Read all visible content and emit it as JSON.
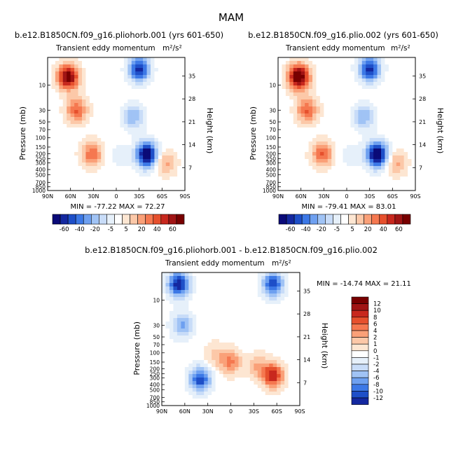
{
  "figure_title": "MAM",
  "panels": [
    {
      "id": "left",
      "case_title": "b.e12.B1850CN.f09_g16.pliohorb.001 (yrs 601-650)",
      "left_label": "Transient eddy momentum",
      "units": "m²/s²",
      "stats": "MIN = -77.22   MAX = 72.27"
    },
    {
      "id": "right",
      "case_title": "b.e12.B1850CN.f09_g16.plio.002 (yrs 601-650)",
      "left_label": "Transient eddy momentum",
      "units": "m²/s²",
      "stats": "MIN = -79.41   MAX = 83.01"
    },
    {
      "id": "diff",
      "case_title": "b.e12.B1850CN.f09_g16.pliohorb.001 - b.e12.B1850CN.f09_g16.plio.002",
      "left_label": "Transient eddy momentum",
      "units": "m²/s²",
      "stats": "MIN = -14.74   MAX =  21.11"
    }
  ],
  "chart_data": [
    {
      "type": "heatmap",
      "title": "b.e12.B1850CN.f09_g16.pliohorb.001 (yrs 601-650)",
      "xlabel": "",
      "ylabel": "Pressure (mb)",
      "y2label": "Height (km)",
      "x_ticks": [
        "90N",
        "60N",
        "30N",
        "0",
        "30S",
        "60S",
        "90S"
      ],
      "x_values": [
        90,
        60,
        30,
        0,
        -30,
        -60,
        -90
      ],
      "y_ticks": [
        10,
        30,
        50,
        70,
        100,
        150,
        200,
        250,
        300,
        400,
        500,
        700,
        850,
        1000
      ],
      "y2_ticks": [
        35,
        28,
        21,
        14,
        7
      ],
      "ylim": [
        1000,
        3
      ],
      "min": -77.22,
      "max": 72.27,
      "features": [
        {
          "lat": 63,
          "p": 7,
          "value": 72
        },
        {
          "lat": 52,
          "p": 30,
          "value": 40
        },
        {
          "lat": -30,
          "p": 5,
          "value": -60
        },
        {
          "lat": -22,
          "p": 40,
          "value": -30
        },
        {
          "lat": 32,
          "p": 205,
          "value": 38
        },
        {
          "lat": -40,
          "p": 210,
          "value": -78
        },
        {
          "lat": -65,
          "p": 300,
          "value": 24
        },
        {
          "lat": -5,
          "p": 220,
          "value": -9
        }
      ]
    },
    {
      "type": "heatmap",
      "title": "b.e12.B1850CN.f09_g16.plio.002 (yrs 601-650)",
      "xlabel": "",
      "ylabel": "Pressure (mb)",
      "y2label": "Height (km)",
      "x_ticks": [
        "90N",
        "60N",
        "30N",
        "0",
        "30S",
        "60S",
        "90S"
      ],
      "x_values": [
        90,
        60,
        30,
        0,
        -30,
        -60,
        -90
      ],
      "y_ticks": [
        10,
        30,
        50,
        70,
        100,
        150,
        200,
        250,
        300,
        400,
        500,
        700,
        850,
        1000
      ],
      "y2_ticks": [
        35,
        28,
        21,
        14,
        7
      ],
      "ylim": [
        1000,
        3
      ],
      "min": -79.41,
      "max": 83.01,
      "features": [
        {
          "lat": 63,
          "p": 7,
          "value": 80
        },
        {
          "lat": 52,
          "p": 30,
          "value": 40
        },
        {
          "lat": -30,
          "p": 5,
          "value": -62
        },
        {
          "lat": -22,
          "p": 40,
          "value": -30
        },
        {
          "lat": 32,
          "p": 205,
          "value": 40
        },
        {
          "lat": -40,
          "p": 210,
          "value": -80
        },
        {
          "lat": -65,
          "p": 300,
          "value": 24
        },
        {
          "lat": -5,
          "p": 220,
          "value": -9
        }
      ]
    },
    {
      "type": "heatmap",
      "title": "b.e12.B1850CN.f09_g16.pliohorb.001 - b.e12.B1850CN.f09_g16.plio.002",
      "xlabel": "",
      "ylabel": "Pressure (mb)",
      "y2label": "Height (km)",
      "x_ticks": [
        "90N",
        "60N",
        "30N",
        "0",
        "30S",
        "60S",
        "90S"
      ],
      "x_values": [
        90,
        60,
        30,
        0,
        -30,
        -60,
        -90
      ],
      "y_ticks": [
        10,
        30,
        50,
        70,
        100,
        150,
        200,
        250,
        300,
        400,
        500,
        700,
        850,
        1000
      ],
      "y2_ticks": [
        35,
        28,
        21,
        14,
        7
      ],
      "ylim": [
        1000,
        3
      ],
      "min": -14.74,
      "max": 21.11,
      "features": [
        {
          "lat": 68,
          "p": 5,
          "value": -12
        },
        {
          "lat": 63,
          "p": 30,
          "value": -6
        },
        {
          "lat": -55,
          "p": 5,
          "value": -10
        },
        {
          "lat": 40,
          "p": 320,
          "value": -10
        },
        {
          "lat": 0,
          "p": 150,
          "value": 6
        },
        {
          "lat": -55,
          "p": 270,
          "value": 10
        },
        {
          "lat": -35,
          "p": 180,
          "value": 4
        },
        {
          "lat": 20,
          "p": 110,
          "value": 3
        }
      ]
    }
  ],
  "colorbar_top": {
    "labels": [
      "-60",
      "-40",
      "-20",
      "-5",
      "5",
      "20",
      "40",
      "60"
    ],
    "colors": [
      "#0a0a78",
      "#1428a0",
      "#1e4fc8",
      "#3c78e6",
      "#6ea0f0",
      "#a0c3f5",
      "#c8dcf8",
      "#e6f0fa",
      "#ffffff",
      "#fde6d2",
      "#fcc8a8",
      "#faa078",
      "#f57850",
      "#e6502d",
      "#c8281e",
      "#a01414",
      "#780000"
    ]
  },
  "colorbar_diff": {
    "labels": [
      "12",
      "10",
      "8",
      "6",
      "4",
      "2",
      "1",
      "0",
      "-1",
      "-2",
      "-4",
      "-6",
      "-8",
      "-10",
      "-12"
    ],
    "colors": [
      "#780000",
      "#a01414",
      "#c8281e",
      "#e6502d",
      "#f57850",
      "#faa078",
      "#fcc8a8",
      "#fde6d2",
      "#ffffff",
      "#e6f0fa",
      "#c8dcf8",
      "#a0c3f5",
      "#6ea0f0",
      "#3c78e6",
      "#1e4fc8",
      "#1428a0"
    ]
  },
  "colors": {
    "pos_max": "#780000",
    "neg_max": "#0a0a78",
    "zero": "#ffffff"
  }
}
